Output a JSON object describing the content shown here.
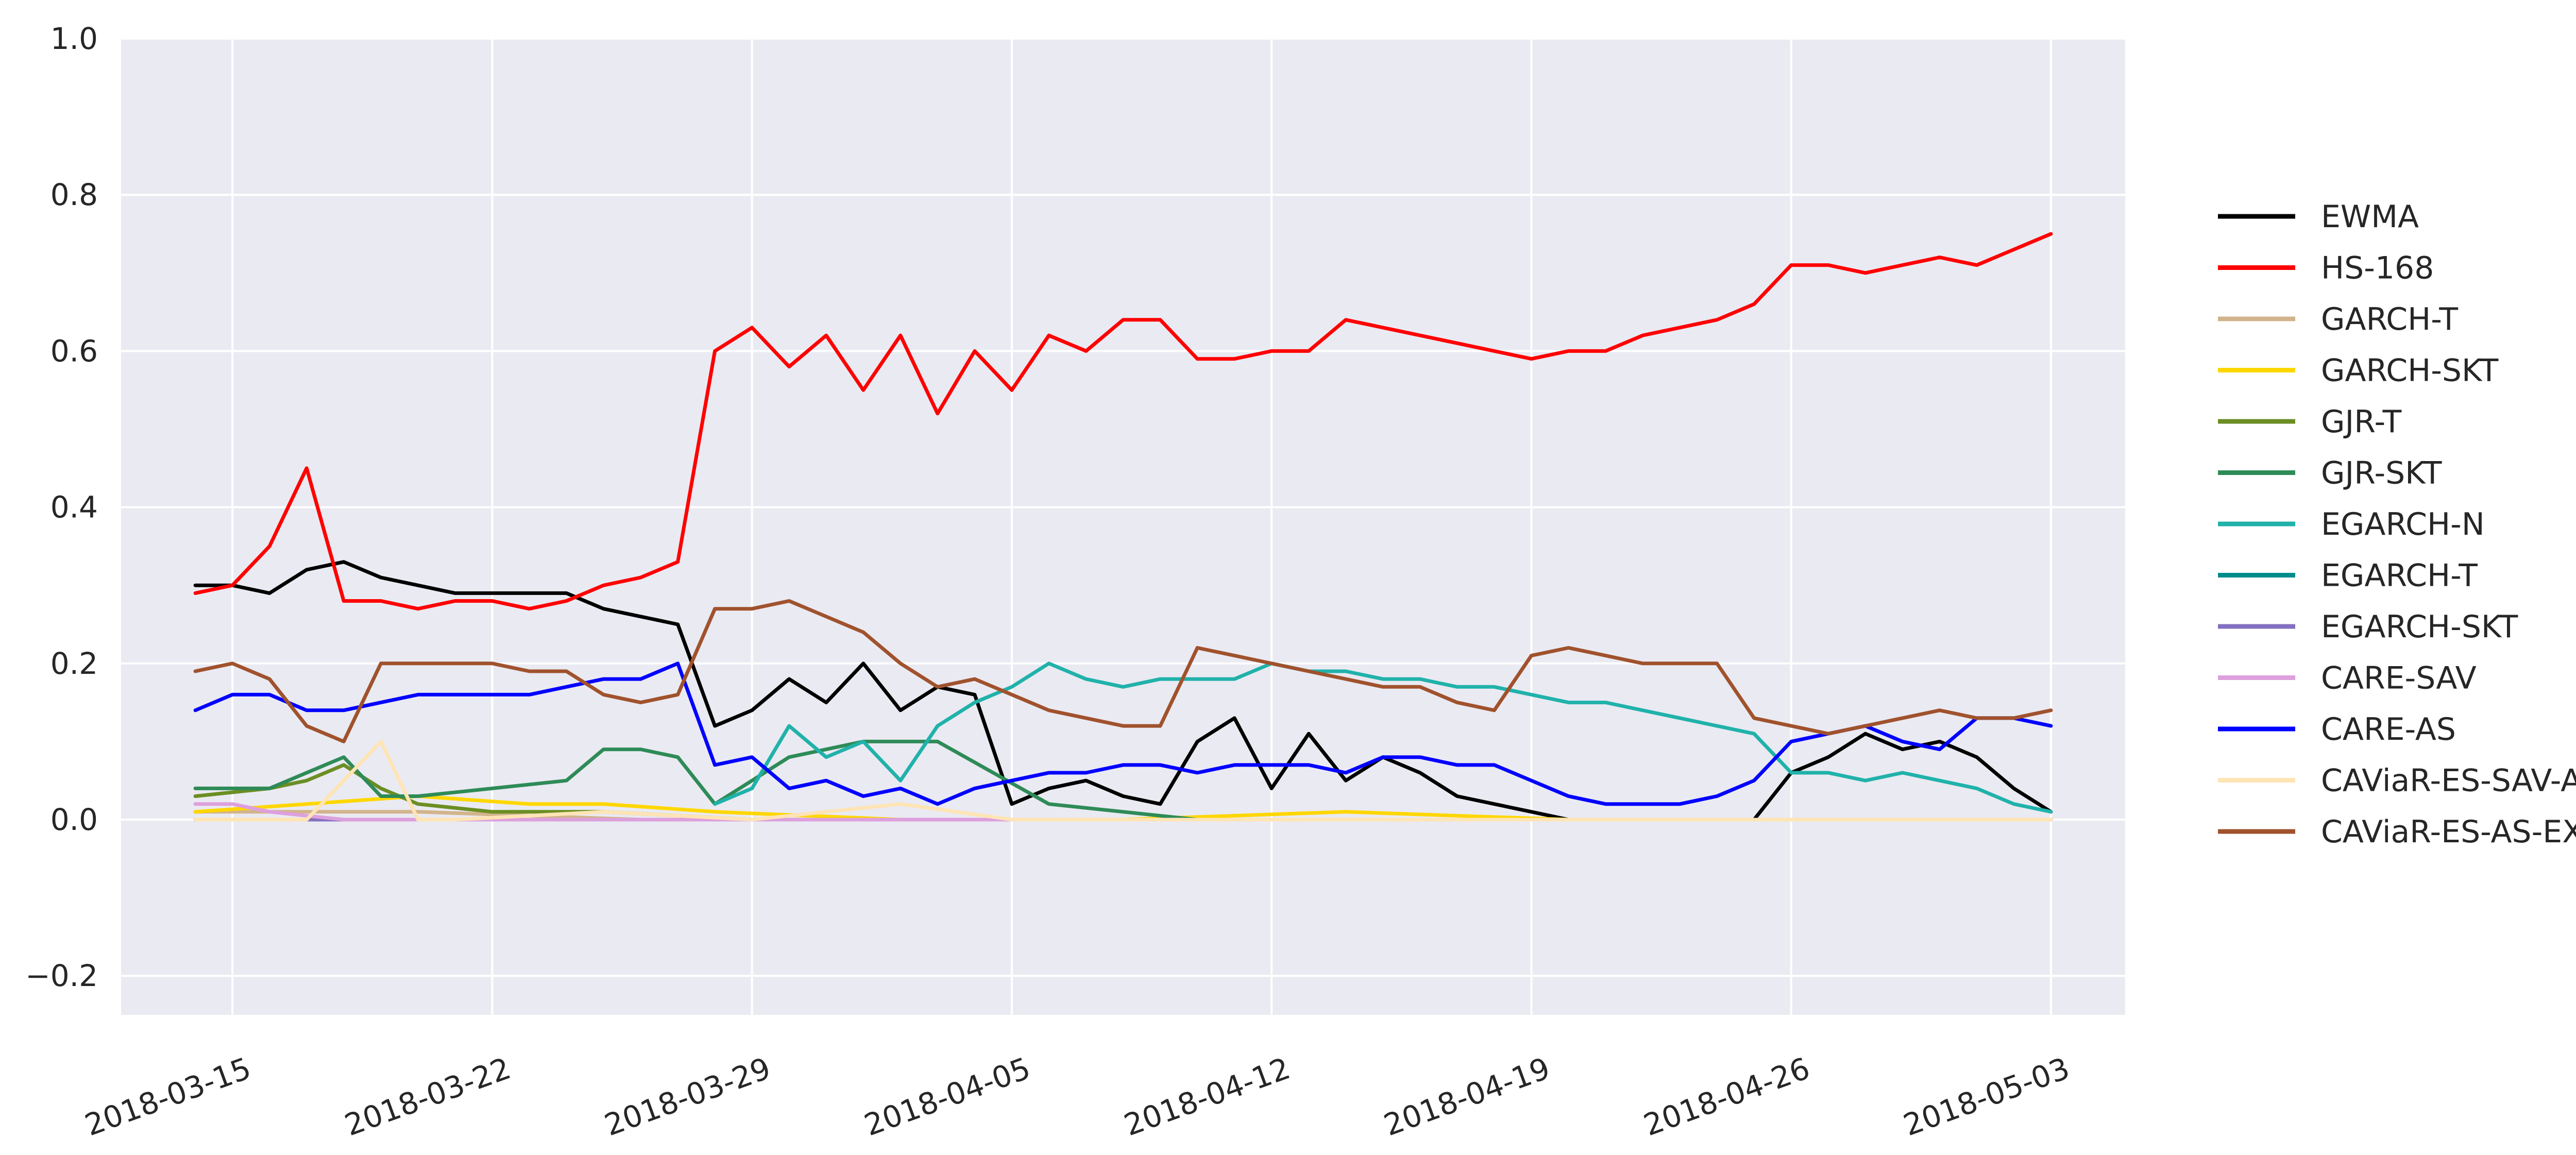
{
  "chart_data": {
    "type": "line",
    "title": "",
    "xlabel": "",
    "ylabel": "",
    "x_range": [
      "2018-03-12",
      "2018-05-05"
    ],
    "ylim": [
      -0.25,
      1.0
    ],
    "x_ticks": [
      "2018-03-15",
      "2018-03-22",
      "2018-03-29",
      "2018-04-05",
      "2018-04-12",
      "2018-04-19",
      "2018-04-26",
      "2018-05-03"
    ],
    "y_ticks": [
      -0.2,
      0.0,
      0.2,
      0.4,
      0.6,
      0.8,
      1.0
    ],
    "y_tick_labels": [
      "−0.2",
      "0.0",
      "0.2",
      "0.4",
      "0.6",
      "0.8",
      "1.0"
    ],
    "grid": true,
    "legend_position": "right",
    "background_color": "#eaeaf2",
    "series": [
      {
        "name": "EWMA",
        "color": "#000000",
        "x": [
          "2018-03-14",
          "2018-03-15",
          "2018-03-16",
          "2018-03-17",
          "2018-03-18",
          "2018-03-19",
          "2018-03-20",
          "2018-03-21",
          "2018-03-22",
          "2018-03-23",
          "2018-03-24",
          "2018-03-25",
          "2018-03-26",
          "2018-03-27",
          "2018-03-28",
          "2018-03-29",
          "2018-03-30",
          "2018-03-31",
          "2018-04-01",
          "2018-04-02",
          "2018-04-03",
          "2018-04-04",
          "2018-04-05",
          "2018-04-06",
          "2018-04-07",
          "2018-04-08",
          "2018-04-09",
          "2018-04-10",
          "2018-04-11",
          "2018-04-12",
          "2018-04-13",
          "2018-04-14",
          "2018-04-15",
          "2018-04-16",
          "2018-04-17",
          "2018-04-18",
          "2018-04-19",
          "2018-04-20",
          "2018-04-21",
          "2018-04-22",
          "2018-04-23",
          "2018-04-24",
          "2018-04-25",
          "2018-04-26",
          "2018-04-27",
          "2018-04-28",
          "2018-04-29",
          "2018-04-30",
          "2018-05-01",
          "2018-05-02",
          "2018-05-03"
        ],
        "y": [
          0.3,
          0.3,
          0.29,
          0.32,
          0.33,
          0.31,
          0.3,
          0.29,
          0.29,
          0.29,
          0.29,
          0.27,
          0.26,
          0.25,
          0.12,
          0.14,
          0.18,
          0.15,
          0.2,
          0.14,
          0.17,
          0.16,
          0.02,
          0.04,
          0.05,
          0.03,
          0.02,
          0.1,
          0.13,
          0.04,
          0.11,
          0.05,
          0.08,
          0.06,
          0.03,
          0.02,
          0.01,
          0.0,
          0.0,
          0.0,
          0.0,
          0.0,
          0.0,
          0.06,
          0.08,
          0.11,
          0.09,
          0.1,
          0.08,
          0.04,
          0.01
        ]
      },
      {
        "name": "HS-168",
        "color": "#ff0000",
        "x": [
          "2018-03-14",
          "2018-03-15",
          "2018-03-16",
          "2018-03-17",
          "2018-03-18",
          "2018-03-19",
          "2018-03-20",
          "2018-03-21",
          "2018-03-22",
          "2018-03-23",
          "2018-03-24",
          "2018-03-25",
          "2018-03-26",
          "2018-03-27",
          "2018-03-28",
          "2018-03-29",
          "2018-03-30",
          "2018-03-31",
          "2018-04-01",
          "2018-04-02",
          "2018-04-03",
          "2018-04-04",
          "2018-04-05",
          "2018-04-06",
          "2018-04-07",
          "2018-04-08",
          "2018-04-09",
          "2018-04-10",
          "2018-04-11",
          "2018-04-12",
          "2018-04-13",
          "2018-04-14",
          "2018-04-15",
          "2018-04-16",
          "2018-04-17",
          "2018-04-18",
          "2018-04-19",
          "2018-04-20",
          "2018-04-21",
          "2018-04-22",
          "2018-04-23",
          "2018-04-24",
          "2018-04-25",
          "2018-04-26",
          "2018-04-27",
          "2018-04-28",
          "2018-04-29",
          "2018-04-30",
          "2018-05-01",
          "2018-05-02",
          "2018-05-03"
        ],
        "y": [
          0.29,
          0.3,
          0.35,
          0.45,
          0.28,
          0.28,
          0.27,
          0.28,
          0.28,
          0.27,
          0.28,
          0.3,
          0.31,
          0.33,
          0.6,
          0.63,
          0.58,
          0.62,
          0.55,
          0.62,
          0.52,
          0.6,
          0.55,
          0.62,
          0.6,
          0.64,
          0.64,
          0.59,
          0.59,
          0.6,
          0.6,
          0.64,
          0.63,
          0.62,
          0.61,
          0.6,
          0.59,
          0.6,
          0.6,
          0.62,
          0.63,
          0.64,
          0.66,
          0.71,
          0.71,
          0.7,
          0.71,
          0.72,
          0.71,
          0.73,
          0.75
        ]
      },
      {
        "name": "GARCH-T",
        "color": "#d2b48c",
        "x": [
          "2018-03-14",
          "2018-03-20",
          "2018-03-26",
          "2018-04-01",
          "2018-04-07",
          "2018-04-13",
          "2018-04-19",
          "2018-04-25",
          "2018-05-03"
        ],
        "y": [
          0.01,
          0.01,
          0.0,
          0.0,
          0.0,
          0.0,
          0.0,
          0.0,
          0.0
        ]
      },
      {
        "name": "GARCH-SKT",
        "color": "#ffd700",
        "x": [
          "2018-03-14",
          "2018-03-17",
          "2018-03-20",
          "2018-03-23",
          "2018-03-25",
          "2018-03-28",
          "2018-04-02",
          "2018-04-08",
          "2018-04-14",
          "2018-04-20",
          "2018-04-26",
          "2018-05-03"
        ],
        "y": [
          0.01,
          0.02,
          0.03,
          0.02,
          0.02,
          0.01,
          0.0,
          0.0,
          0.01,
          0.0,
          0.0,
          0.0
        ]
      },
      {
        "name": "GJR-T",
        "color": "#6b8e23",
        "x": [
          "2018-03-14",
          "2018-03-16",
          "2018-03-17",
          "2018-03-18",
          "2018-03-19",
          "2018-03-20",
          "2018-03-22",
          "2018-03-25",
          "2018-03-29",
          "2018-04-05",
          "2018-04-12",
          "2018-04-20",
          "2018-04-26",
          "2018-05-03"
        ],
        "y": [
          0.03,
          0.04,
          0.05,
          0.07,
          0.04,
          0.02,
          0.01,
          0.01,
          0.0,
          0.0,
          0.0,
          0.0,
          0.0,
          0.0
        ]
      },
      {
        "name": "GJR-SKT",
        "color": "#2e8b57",
        "x": [
          "2018-03-14",
          "2018-03-16",
          "2018-03-18",
          "2018-03-19",
          "2018-03-20",
          "2018-03-22",
          "2018-03-24",
          "2018-03-25",
          "2018-03-26",
          "2018-03-27",
          "2018-03-28",
          "2018-03-30",
          "2018-04-01",
          "2018-04-03",
          "2018-04-06",
          "2018-04-10",
          "2018-04-18",
          "2018-04-26",
          "2018-05-03"
        ],
        "y": [
          0.04,
          0.04,
          0.08,
          0.03,
          0.03,
          0.04,
          0.05,
          0.09,
          0.09,
          0.08,
          0.02,
          0.08,
          0.1,
          0.1,
          0.02,
          0.0,
          0.0,
          0.0,
          0.0
        ]
      },
      {
        "name": "EGARCH-N",
        "color": "#20b2aa",
        "x": [
          "2018-03-28",
          "2018-03-29",
          "2018-03-30",
          "2018-03-31",
          "2018-04-01",
          "2018-04-02",
          "2018-04-03",
          "2018-04-04",
          "2018-04-05",
          "2018-04-06",
          "2018-04-07",
          "2018-04-08",
          "2018-04-09",
          "2018-04-10",
          "2018-04-11",
          "2018-04-12",
          "2018-04-13",
          "2018-04-14",
          "2018-04-15",
          "2018-04-16",
          "2018-04-17",
          "2018-04-18",
          "2018-04-19",
          "2018-04-20",
          "2018-04-21",
          "2018-04-22",
          "2018-04-23",
          "2018-04-24",
          "2018-04-25",
          "2018-04-26",
          "2018-04-27",
          "2018-04-28",
          "2018-04-29",
          "2018-04-30",
          "2018-05-01",
          "2018-05-02",
          "2018-05-03"
        ],
        "y": [
          0.02,
          0.04,
          0.12,
          0.08,
          0.1,
          0.05,
          0.12,
          0.15,
          0.17,
          0.2,
          0.18,
          0.17,
          0.18,
          0.18,
          0.18,
          0.2,
          0.19,
          0.19,
          0.18,
          0.18,
          0.17,
          0.17,
          0.16,
          0.15,
          0.15,
          0.14,
          0.13,
          0.12,
          0.11,
          0.06,
          0.06,
          0.05,
          0.06,
          0.05,
          0.04,
          0.02,
          0.01
        ]
      },
      {
        "name": "EGARCH-T",
        "color": "#008b8b",
        "x": [
          "2018-03-14",
          "2018-03-21",
          "2018-03-28",
          "2018-04-04",
          "2018-04-11",
          "2018-04-18",
          "2018-04-25",
          "2018-05-03"
        ],
        "y": [
          0.0,
          0.0,
          0.0,
          0.0,
          0.0,
          0.0,
          0.0,
          0.0
        ]
      },
      {
        "name": "EGARCH-SKT",
        "color": "#8470c0",
        "x": [
          "2018-03-14",
          "2018-03-21",
          "2018-03-28",
          "2018-04-04",
          "2018-04-11",
          "2018-04-18",
          "2018-04-25",
          "2018-05-03"
        ],
        "y": [
          0.0,
          0.0,
          0.0,
          0.0,
          0.0,
          0.0,
          0.0,
          0.0
        ]
      },
      {
        "name": "CARE-SAV",
        "color": "#dda0dd",
        "x": [
          "2018-03-14",
          "2018-03-15",
          "2018-03-16",
          "2018-03-18",
          "2018-03-22",
          "2018-03-29",
          "2018-04-05",
          "2018-04-12",
          "2018-04-19",
          "2018-04-26",
          "2018-05-03"
        ],
        "y": [
          0.02,
          0.02,
          0.01,
          0.0,
          0.0,
          0.0,
          0.0,
          0.0,
          0.0,
          0.0,
          0.0
        ]
      },
      {
        "name": "CARE-AS",
        "color": "#0000ff",
        "x": [
          "2018-03-14",
          "2018-03-15",
          "2018-03-16",
          "2018-03-17",
          "2018-03-18",
          "2018-03-19",
          "2018-03-20",
          "2018-03-21",
          "2018-03-22",
          "2018-03-23",
          "2018-03-24",
          "2018-03-25",
          "2018-03-26",
          "2018-03-27",
          "2018-03-28",
          "2018-03-29",
          "2018-03-30",
          "2018-03-31",
          "2018-04-01",
          "2018-04-02",
          "2018-04-03",
          "2018-04-04",
          "2018-04-05",
          "2018-04-06",
          "2018-04-07",
          "2018-04-08",
          "2018-04-09",
          "2018-04-10",
          "2018-04-11",
          "2018-04-12",
          "2018-04-13",
          "2018-04-14",
          "2018-04-15",
          "2018-04-16",
          "2018-04-17",
          "2018-04-18",
          "2018-04-19",
          "2018-04-20",
          "2018-04-21",
          "2018-04-22",
          "2018-04-23",
          "2018-04-24",
          "2018-04-25",
          "2018-04-26",
          "2018-04-27",
          "2018-04-28",
          "2018-04-29",
          "2018-04-30",
          "2018-05-01",
          "2018-05-02",
          "2018-05-03"
        ],
        "y": [
          0.14,
          0.16,
          0.16,
          0.14,
          0.14,
          0.15,
          0.16,
          0.16,
          0.16,
          0.16,
          0.17,
          0.18,
          0.18,
          0.2,
          0.07,
          0.08,
          0.04,
          0.05,
          0.03,
          0.04,
          0.02,
          0.04,
          0.05,
          0.06,
          0.06,
          0.07,
          0.07,
          0.06,
          0.07,
          0.07,
          0.07,
          0.06,
          0.08,
          0.08,
          0.07,
          0.07,
          0.05,
          0.03,
          0.02,
          0.02,
          0.02,
          0.03,
          0.05,
          0.1,
          0.11,
          0.12,
          0.1,
          0.09,
          0.13,
          0.13,
          0.12
        ]
      },
      {
        "name": "CAViaR-ES-SAV-AR",
        "color": "#ffe4b5",
        "x": [
          "2018-03-14",
          "2018-03-17",
          "2018-03-19",
          "2018-03-20",
          "2018-03-21",
          "2018-03-25",
          "2018-03-29",
          "2018-04-02",
          "2018-04-05",
          "2018-04-12",
          "2018-04-19",
          "2018-04-26",
          "2018-05-03"
        ],
        "y": [
          0.0,
          0.0,
          0.1,
          0.0,
          0.0,
          0.01,
          0.0,
          0.02,
          0.0,
          0.0,
          0.0,
          0.0,
          0.0
        ]
      },
      {
        "name": "CAViaR-ES-AS-EXP",
        "color": "#a0522d",
        "x": [
          "2018-03-14",
          "2018-03-15",
          "2018-03-16",
          "2018-03-17",
          "2018-03-18",
          "2018-03-19",
          "2018-03-20",
          "2018-03-21",
          "2018-03-22",
          "2018-03-23",
          "2018-03-24",
          "2018-03-25",
          "2018-03-26",
          "2018-03-27",
          "2018-03-28",
          "2018-03-29",
          "2018-03-30",
          "2018-03-31",
          "2018-04-01",
          "2018-04-02",
          "2018-04-03",
          "2018-04-04",
          "2018-04-05",
          "2018-04-06",
          "2018-04-07",
          "2018-04-08",
          "2018-04-09",
          "2018-04-10",
          "2018-04-11",
          "2018-04-12",
          "2018-04-13",
          "2018-04-14",
          "2018-04-15",
          "2018-04-16",
          "2018-04-17",
          "2018-04-18",
          "2018-04-19",
          "2018-04-20",
          "2018-04-21",
          "2018-04-22",
          "2018-04-23",
          "2018-04-24",
          "2018-04-25",
          "2018-04-26",
          "2018-04-27",
          "2018-04-28",
          "2018-04-29",
          "2018-04-30",
          "2018-05-01",
          "2018-05-02",
          "2018-05-03"
        ],
        "y": [
          0.19,
          0.2,
          0.18,
          0.12,
          0.1,
          0.2,
          0.2,
          0.2,
          0.2,
          0.19,
          0.19,
          0.16,
          0.15,
          0.16,
          0.27,
          0.27,
          0.28,
          0.26,
          0.24,
          0.2,
          0.17,
          0.18,
          0.16,
          0.14,
          0.13,
          0.12,
          0.12,
          0.22,
          0.21,
          0.2,
          0.19,
          0.18,
          0.17,
          0.17,
          0.15,
          0.14,
          0.21,
          0.22,
          0.21,
          0.2,
          0.2,
          0.2,
          0.13,
          0.12,
          0.11,
          0.12,
          0.13,
          0.14,
          0.13,
          0.13,
          0.14
        ]
      }
    ]
  }
}
